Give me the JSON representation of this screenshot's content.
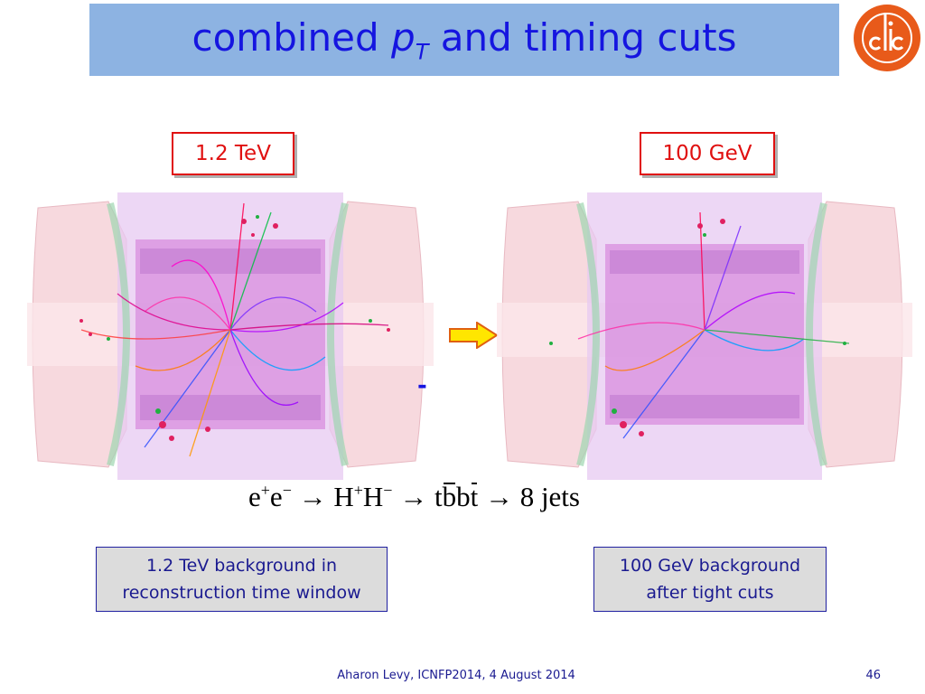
{
  "slide": {
    "title_main": "combined",
    "title_p": "p",
    "title_sub": "T",
    "title_rest": "and timing cuts",
    "logo_text": "CLIC",
    "label_left": "1.2 TeV",
    "label_right": "100 GeV",
    "dash": "-",
    "formula": {
      "e1": "e",
      "e1_sup": "+",
      "e2": "e",
      "e2_sup": "−",
      "arrow1": "→",
      "h1": "H",
      "h1_sup": "+",
      "h2": "H",
      "h2_sup": "−",
      "arrow2": "→",
      "t1": "t",
      "bbar": "b",
      "b2": "b",
      "tbar": "t",
      "arrow3": "→",
      "result": "8 jets"
    },
    "caption_left_line1": "1.2 TeV background in",
    "caption_left_line2": "reconstruction time window",
    "caption_right_line1": "100 GeV background",
    "caption_right_line2": "after tight cuts",
    "footer_text": "Aharon Levy, ICNFP2014, 4 August 2014",
    "page_number": "46"
  },
  "colors": {
    "title_bar": "#8db3e2",
    "title_text": "#1515e0",
    "label_red": "#e01010",
    "caption_bg": "#dcdcdc",
    "logo_orange": "#e85a1a"
  }
}
